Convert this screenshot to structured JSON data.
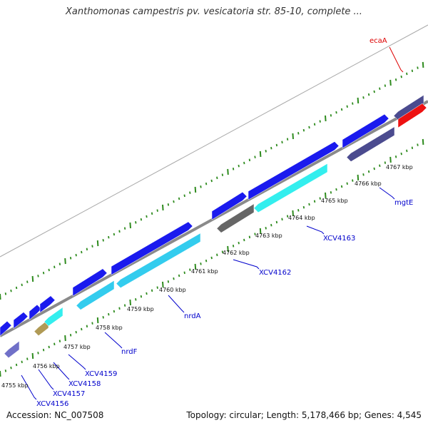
{
  "title": "Xanthomonas campestris pv. vesicatoria str. 85-10, complete ...",
  "accession": "Accession: NC_007508",
  "summary": "Topology: circular; Length: 5,178,466 bp; Genes: 4,545",
  "colors": {
    "background": "#ffffff",
    "backbone": "#8a8a8a",
    "tick": "#2e8b1e",
    "gene_label": "#0000cc",
    "rna_label": "#dd0000"
  },
  "scale_labels": [
    "4755 kbp",
    "4756 kbp",
    "4757 kbp",
    "4758 kbp",
    "4759 kbp",
    "4760 kbp",
    "4761 kbp",
    "4762 kbp",
    "4763 kbp",
    "4764 kbp",
    "4765 kbp",
    "4766 kbp",
    "4767 kbp"
  ],
  "gene_labels": [
    {
      "text": "XCV4156",
      "type": "gene"
    },
    {
      "text": "XCV4157",
      "type": "gene"
    },
    {
      "text": "XCV4158",
      "type": "gene"
    },
    {
      "text": "XCV4159",
      "type": "gene"
    },
    {
      "text": "nrdF",
      "type": "gene"
    },
    {
      "text": "nrdA",
      "type": "gene"
    },
    {
      "text": "XCV4162",
      "type": "gene"
    },
    {
      "text": "XCV4163",
      "type": "gene"
    },
    {
      "text": "mgtE",
      "type": "gene"
    },
    {
      "text": "ecaA",
      "type": "rna"
    }
  ]
}
